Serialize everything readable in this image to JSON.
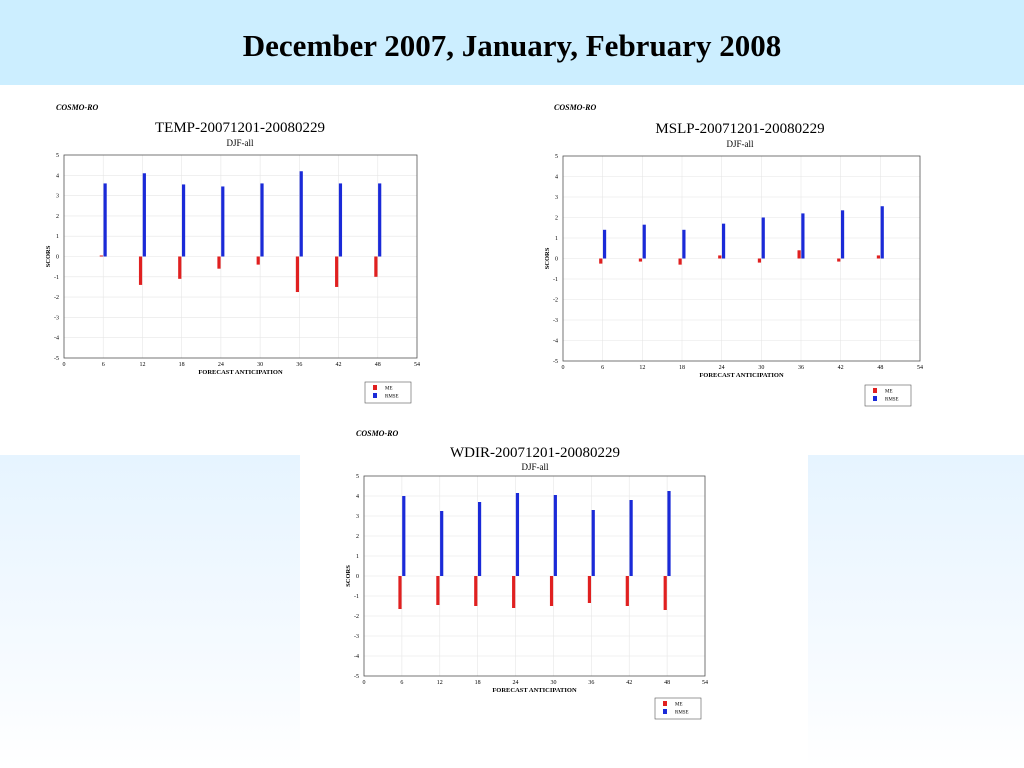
{
  "slide": {
    "title": "December 2007, January, February 2008"
  },
  "colors": {
    "title_band": "#cceeff",
    "me": "#e02020",
    "rmse": "#1a2ad8",
    "grid": "#e6e6e6"
  },
  "chart_data": [
    {
      "type": "bar",
      "source": "COSMO-RO",
      "title": "TEMP-20071201-20080229",
      "subtitle": "DJF-all",
      "xlabel": "FORECAST ANTICIPATION",
      "ylabel": "SCORS",
      "xlim": [
        0,
        54
      ],
      "ylim": [
        -5,
        5
      ],
      "xticks": [
        0,
        6,
        12,
        18,
        24,
        30,
        36,
        42,
        48,
        54
      ],
      "yticks": [
        5,
        4,
        3,
        2,
        1,
        0,
        -1,
        -2,
        -3,
        -4,
        -5
      ],
      "x": [
        6,
        12,
        18,
        24,
        30,
        36,
        42,
        48
      ],
      "series": [
        {
          "name": "ME",
          "color": "#e02020",
          "values": [
            0.05,
            -1.4,
            -1.1,
            -0.6,
            -0.4,
            -1.75,
            -1.5,
            -1.0
          ]
        },
        {
          "name": "RMSE",
          "color": "#1a2ad8",
          "values": [
            3.6,
            4.1,
            3.55,
            3.45,
            3.6,
            4.2,
            3.6,
            3.6
          ]
        }
      ],
      "legend": "bottom-right",
      "grid": true
    },
    {
      "type": "bar",
      "source": "COSMO-RO",
      "title": "MSLP-20071201-20080229",
      "subtitle": "DJF-all",
      "xlabel": "FORECAST ANTICIPATION",
      "ylabel": "SCORS",
      "xlim": [
        0,
        54
      ],
      "ylim": [
        -5,
        5
      ],
      "xticks": [
        0,
        6,
        12,
        18,
        24,
        30,
        36,
        42,
        48,
        54
      ],
      "yticks": [
        5,
        4,
        3,
        2,
        1,
        0,
        -1,
        -2,
        -3,
        -4,
        -5
      ],
      "x": [
        6,
        12,
        18,
        24,
        30,
        36,
        42,
        48
      ],
      "series": [
        {
          "name": "ME",
          "color": "#e02020",
          "values": [
            -0.25,
            -0.15,
            -0.3,
            0.15,
            -0.2,
            0.4,
            -0.15,
            0.15
          ]
        },
        {
          "name": "RMSE",
          "color": "#1a2ad8",
          "values": [
            1.4,
            1.65,
            1.4,
            1.7,
            2.0,
            2.2,
            2.35,
            2.55
          ]
        }
      ],
      "legend": "bottom-right",
      "grid": true
    },
    {
      "type": "bar",
      "source": "COSMO-RO",
      "title": "WDIR-20071201-20080229",
      "subtitle": "DJF-all",
      "xlabel": "FORECAST ANTICIPATION",
      "ylabel": "SCORS",
      "xlim": [
        0,
        54
      ],
      "ylim": [
        -5,
        5
      ],
      "xticks": [
        0,
        6,
        12,
        18,
        24,
        30,
        36,
        42,
        48,
        54
      ],
      "yticks": [
        5,
        4,
        3,
        2,
        1,
        0,
        -1,
        -2,
        -3,
        -4,
        -5
      ],
      "x": [
        6,
        12,
        18,
        24,
        30,
        36,
        42,
        48
      ],
      "series": [
        {
          "name": "ME",
          "color": "#e02020",
          "values": [
            -1.65,
            -1.45,
            -1.5,
            -1.6,
            -1.5,
            -1.35,
            -1.5,
            -1.7
          ]
        },
        {
          "name": "RMSE",
          "color": "#1a2ad8",
          "values": [
            4.0,
            3.25,
            3.7,
            4.15,
            4.05,
            3.3,
            3.8,
            4.25
          ]
        }
      ],
      "legend": "bottom-right",
      "grid": true
    }
  ]
}
